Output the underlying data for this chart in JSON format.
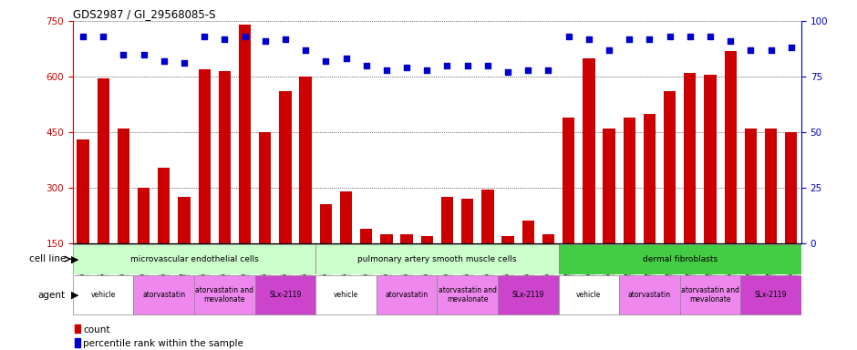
{
  "title": "GDS2987 / GI_29568085-S",
  "samples": [
    "GSM214810",
    "GSM215244",
    "GSM215253",
    "GSM215254",
    "GSM215282",
    "GSM215344",
    "GSM215283",
    "GSM215284",
    "GSM215293",
    "GSM215294",
    "GSM215295",
    "GSM215296",
    "GSM215297",
    "GSM215298",
    "GSM215310",
    "GSM215311",
    "GSM215312",
    "GSM215313",
    "GSM215324",
    "GSM215325",
    "GSM215326",
    "GSM215327",
    "GSM215328",
    "GSM215329",
    "GSM215330",
    "GSM215331",
    "GSM215332",
    "GSM215333",
    "GSM215334",
    "GSM215335",
    "GSM215336",
    "GSM215337",
    "GSM215338",
    "GSM215339",
    "GSM215340",
    "GSM215341"
  ],
  "bar_values": [
    430,
    595,
    460,
    300,
    355,
    275,
    620,
    615,
    740,
    450,
    560,
    600,
    255,
    290,
    190,
    175,
    175,
    170,
    275,
    270,
    295,
    170,
    210,
    175,
    490,
    650,
    460,
    490,
    500,
    560,
    610,
    605,
    670,
    460,
    460,
    450
  ],
  "percentile_values": [
    93,
    93,
    85,
    85,
    82,
    81,
    93,
    92,
    93,
    91,
    92,
    87,
    82,
    83,
    80,
    78,
    79,
    78,
    80,
    80,
    80,
    77,
    78,
    78,
    93,
    92,
    87,
    92,
    92,
    93,
    93,
    93,
    91,
    87,
    87,
    88
  ],
  "bar_color": "#cc0000",
  "dot_color": "#0000cc",
  "ylim_left": [
    150,
    750
  ],
  "ylim_right": [
    0,
    100
  ],
  "yticks_left": [
    150,
    300,
    450,
    600,
    750
  ],
  "yticks_right": [
    0,
    25,
    50,
    75,
    100
  ],
  "cell_line_colors": [
    "#ccffcc",
    "#ccffcc",
    "#44cc44"
  ],
  "cell_line_groups": [
    {
      "label": "microvascular endothelial cells",
      "start": 0,
      "end": 12
    },
    {
      "label": "pulmonary artery smooth muscle cells",
      "start": 12,
      "end": 24
    },
    {
      "label": "dermal fibroblasts",
      "start": 24,
      "end": 36
    }
  ],
  "agent_groups": [
    {
      "label": "vehicle",
      "start": 0,
      "end": 3,
      "color": "#ffffff"
    },
    {
      "label": "atorvastatin",
      "start": 3,
      "end": 6,
      "color": "#ee88ee"
    },
    {
      "label": "atorvastatin and\nmevalonate",
      "start": 6,
      "end": 9,
      "color": "#ee88ee"
    },
    {
      "label": "SLx-2119",
      "start": 9,
      "end": 12,
      "color": "#cc44cc"
    },
    {
      "label": "vehicle",
      "start": 12,
      "end": 15,
      "color": "#ffffff"
    },
    {
      "label": "atorvastatin",
      "start": 15,
      "end": 18,
      "color": "#ee88ee"
    },
    {
      "label": "atorvastatin and\nmevalonate",
      "start": 18,
      "end": 21,
      "color": "#ee88ee"
    },
    {
      "label": "SLx-2119",
      "start": 21,
      "end": 24,
      "color": "#cc44cc"
    },
    {
      "label": "vehicle",
      "start": 24,
      "end": 27,
      "color": "#ffffff"
    },
    {
      "label": "atorvastatin",
      "start": 27,
      "end": 30,
      "color": "#ee88ee"
    },
    {
      "label": "atorvastatin and\nmevalonate",
      "start": 30,
      "end": 33,
      "color": "#ee88ee"
    },
    {
      "label": "SLx-2119",
      "start": 33,
      "end": 36,
      "color": "#cc44cc"
    }
  ]
}
